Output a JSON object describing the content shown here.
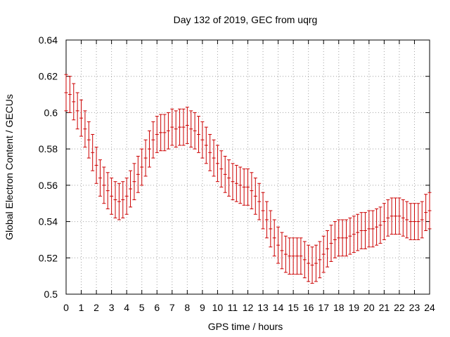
{
  "chart_data": {
    "type": "errorbar",
    "title": "Day 132 of 2019, GEC from uqrg",
    "xlabel": "GPS time / hours",
    "ylabel": "Global Electron Content / GECUs",
    "xlim": [
      0,
      24
    ],
    "ylim": [
      0.5,
      0.64
    ],
    "x_ticks": [
      "0",
      "1",
      "2",
      "3",
      "4",
      "5",
      "6",
      "7",
      "8",
      "9",
      "10",
      "11",
      "12",
      "13",
      "14",
      "15",
      "16",
      "17",
      "18",
      "19",
      "20",
      "21",
      "22",
      "23",
      "24"
    ],
    "y_ticks": [
      "0.5",
      "0.52",
      "0.54",
      "0.56",
      "0.58",
      "0.6",
      "0.62",
      "0.64"
    ],
    "grid": true,
    "error": 0.01,
    "color": "#cc0000",
    "series": [
      {
        "name": "GEC",
        "x": [
          0,
          0.25,
          0.5,
          0.75,
          1,
          1.25,
          1.5,
          1.75,
          2,
          2.25,
          2.5,
          2.75,
          3,
          3.25,
          3.5,
          3.75,
          4,
          4.25,
          4.5,
          4.75,
          5,
          5.25,
          5.5,
          5.75,
          6,
          6.25,
          6.5,
          6.75,
          7,
          7.25,
          7.5,
          7.75,
          8,
          8.25,
          8.5,
          8.75,
          9,
          9.25,
          9.5,
          9.75,
          10,
          10.25,
          10.5,
          10.75,
          11,
          11.25,
          11.5,
          11.75,
          12,
          12.25,
          12.5,
          12.75,
          13,
          13.25,
          13.5,
          13.75,
          14,
          14.25,
          14.5,
          14.75,
          15,
          15.25,
          15.5,
          15.75,
          16,
          16.25,
          16.5,
          16.75,
          17,
          17.25,
          17.5,
          17.75,
          18,
          18.25,
          18.5,
          18.75,
          19,
          19.25,
          19.5,
          19.75,
          20,
          20.25,
          20.5,
          20.75,
          21,
          21.25,
          21.5,
          21.75,
          22,
          22.25,
          22.5,
          22.75,
          23,
          23.25,
          23.5,
          23.75,
          24
        ],
        "y": [
          0.611,
          0.61,
          0.606,
          0.601,
          0.597,
          0.591,
          0.585,
          0.578,
          0.571,
          0.564,
          0.56,
          0.557,
          0.554,
          0.552,
          0.551,
          0.552,
          0.554,
          0.558,
          0.562,
          0.566,
          0.57,
          0.575,
          0.58,
          0.585,
          0.588,
          0.589,
          0.589,
          0.59,
          0.592,
          0.591,
          0.592,
          0.592,
          0.593,
          0.591,
          0.59,
          0.588,
          0.585,
          0.582,
          0.578,
          0.575,
          0.572,
          0.569,
          0.566,
          0.564,
          0.562,
          0.561,
          0.56,
          0.559,
          0.559,
          0.557,
          0.554,
          0.551,
          0.546,
          0.541,
          0.536,
          0.531,
          0.527,
          0.524,
          0.522,
          0.521,
          0.521,
          0.521,
          0.521,
          0.519,
          0.517,
          0.516,
          0.517,
          0.519,
          0.522,
          0.525,
          0.528,
          0.53,
          0.531,
          0.531,
          0.531,
          0.532,
          0.533,
          0.534,
          0.535,
          0.535,
          0.536,
          0.536,
          0.537,
          0.538,
          0.54,
          0.542,
          0.543,
          0.543,
          0.543,
          0.542,
          0.541,
          0.54,
          0.54,
          0.54,
          0.541,
          0.545,
          0.546
        ]
      }
    ]
  }
}
